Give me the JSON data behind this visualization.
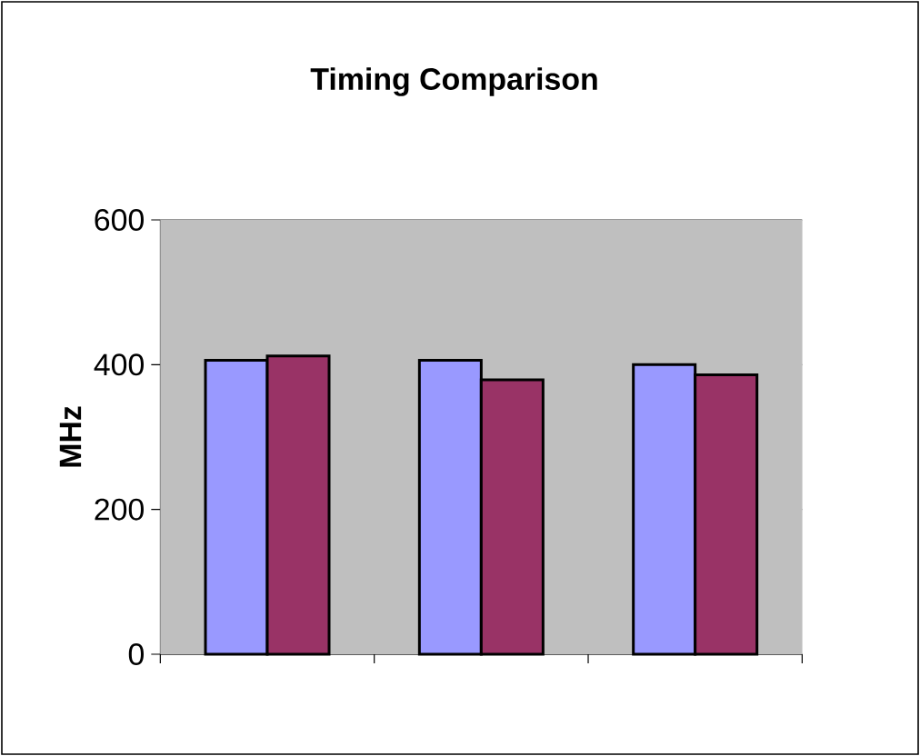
{
  "chart_data": {
    "type": "bar",
    "title": "Timing Comparison",
    "ylabel": "MHz",
    "categories": [
      null,
      null,
      null
    ],
    "series": [
      {
        "color": "#9999ff",
        "values": [
          406,
          406,
          400
        ]
      },
      {
        "color": "#993366",
        "values": [
          412,
          379,
          386
        ]
      }
    ],
    "ylim": [
      0,
      600
    ],
    "yticks": [
      0,
      200,
      400,
      600
    ],
    "grid": "y"
  }
}
